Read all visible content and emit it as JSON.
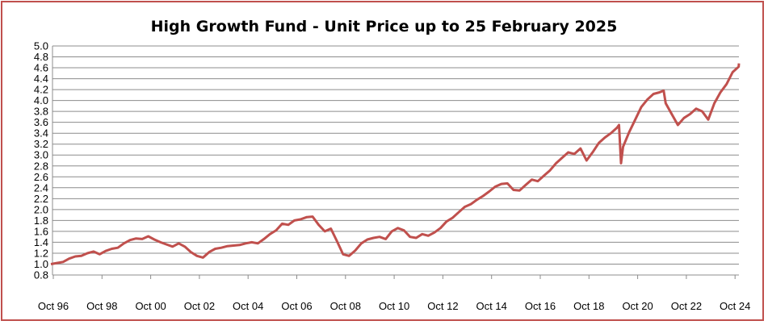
{
  "chart_data": {
    "type": "line",
    "title": "High Growth Fund - Unit Price up to 25 February 2025",
    "xlabel": "",
    "ylabel": "",
    "ylim": [
      0.8,
      5.0
    ],
    "y_ticks": [
      "0.8",
      "1.0",
      "1.2",
      "1.4",
      "1.6",
      "1.8",
      "2.0",
      "2.2",
      "2.4",
      "2.6",
      "2.8",
      "3.0",
      "3.2",
      "3.4",
      "3.6",
      "3.8",
      "4.0",
      "4.2",
      "4.4",
      "4.6",
      "4.8",
      "5.0"
    ],
    "x_ticks": [
      "Oct 96",
      "Oct 98",
      "Oct 00",
      "Oct 02",
      "Oct 04",
      "Oct 06",
      "Oct 08",
      "Oct 10",
      "Oct 12",
      "Oct 14",
      "Oct 16",
      "Oct 18",
      "Oct 20",
      "Oct 22",
      "Oct 24"
    ],
    "grid": true,
    "line_color": "#c0504d",
    "series": [
      {
        "x": [
          "1996-10",
          "1997-01",
          "1997-04",
          "1997-07",
          "1997-10",
          "1998-01",
          "1998-04",
          "1998-07",
          "1998-10",
          "1999-01",
          "1999-04",
          "1999-07",
          "1999-10",
          "2000-01",
          "2000-04",
          "2000-07",
          "2000-10",
          "2001-01",
          "2001-04",
          "2001-07",
          "2001-10",
          "2002-01",
          "2002-04",
          "2002-07",
          "2002-10",
          "2003-01",
          "2003-04",
          "2003-07",
          "2003-10",
          "2004-01",
          "2004-04",
          "2004-07",
          "2004-10",
          "2005-01",
          "2005-04",
          "2005-07",
          "2005-10",
          "2006-01",
          "2006-04",
          "2006-07",
          "2006-10",
          "2007-01",
          "2007-04",
          "2007-07",
          "2007-10",
          "2008-01",
          "2008-04",
          "2008-07",
          "2008-10",
          "2009-01",
          "2009-04",
          "2009-07",
          "2009-10",
          "2010-01",
          "2010-04",
          "2010-07",
          "2010-10",
          "2011-01",
          "2011-04",
          "2011-07",
          "2011-10",
          "2012-01",
          "2012-04",
          "2012-07",
          "2012-10",
          "2013-01",
          "2013-04",
          "2013-07",
          "2013-10",
          "2014-01",
          "2014-04",
          "2014-07",
          "2014-10",
          "2015-01",
          "2015-04",
          "2015-07",
          "2015-10",
          "2016-01",
          "2016-04",
          "2016-07",
          "2016-10",
          "2017-01",
          "2017-04",
          "2017-07",
          "2017-10",
          "2018-01",
          "2018-04",
          "2018-07",
          "2018-10",
          "2019-01",
          "2019-04",
          "2019-07",
          "2019-10",
          "2020-01",
          "2020-02",
          "2020-03",
          "2020-04",
          "2020-07",
          "2020-10",
          "2021-01",
          "2021-04",
          "2021-07",
          "2021-10",
          "2021-12",
          "2022-01",
          "2022-04",
          "2022-07",
          "2022-10",
          "2023-01",
          "2023-04",
          "2023-07",
          "2023-10",
          "2024-01",
          "2024-04",
          "2024-07",
          "2024-10",
          "2025-01",
          "2025-02"
        ],
        "values": [
          1.0,
          1.02,
          1.04,
          1.1,
          1.14,
          1.15,
          1.2,
          1.23,
          1.18,
          1.24,
          1.28,
          1.3,
          1.38,
          1.44,
          1.47,
          1.46,
          1.51,
          1.45,
          1.4,
          1.36,
          1.32,
          1.38,
          1.32,
          1.22,
          1.15,
          1.12,
          1.22,
          1.28,
          1.3,
          1.33,
          1.34,
          1.35,
          1.38,
          1.4,
          1.38,
          1.46,
          1.55,
          1.62,
          1.74,
          1.72,
          1.8,
          1.82,
          1.86,
          1.87,
          1.72,
          1.6,
          1.65,
          1.42,
          1.18,
          1.15,
          1.25,
          1.38,
          1.45,
          1.48,
          1.5,
          1.46,
          1.6,
          1.66,
          1.62,
          1.5,
          1.48,
          1.55,
          1.52,
          1.58,
          1.66,
          1.78,
          1.85,
          1.95,
          2.05,
          2.1,
          2.18,
          2.25,
          2.33,
          2.42,
          2.47,
          2.48,
          2.36,
          2.35,
          2.45,
          2.55,
          2.52,
          2.62,
          2.72,
          2.85,
          2.95,
          3.05,
          3.02,
          3.12,
          2.9,
          3.05,
          3.22,
          3.32,
          3.4,
          3.5,
          3.55,
          2.85,
          3.15,
          3.42,
          3.65,
          3.88,
          4.02,
          4.12,
          4.15,
          4.18,
          3.95,
          3.75,
          3.55,
          3.68,
          3.75,
          3.85,
          3.8,
          3.65,
          3.95,
          4.15,
          4.3,
          4.52,
          4.62,
          4.68
        ]
      }
    ]
  }
}
